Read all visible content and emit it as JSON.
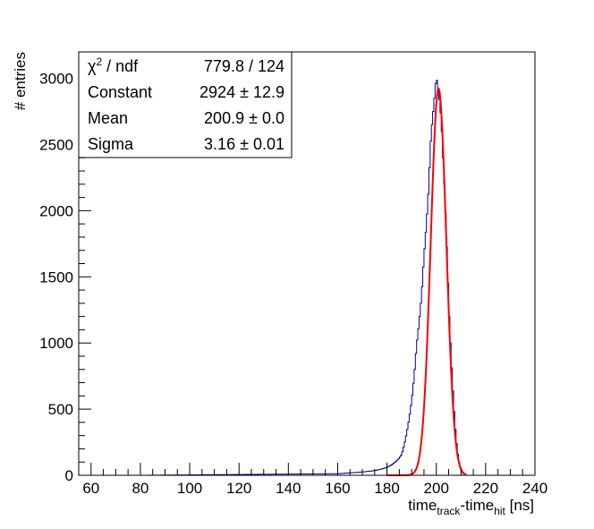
{
  "chart_data": {
    "type": "histogram",
    "xlabel_parts": {
      "t1": "time",
      "sub1": "track",
      "t2": "-time",
      "sub2": "hit",
      "t3": " [ns]"
    },
    "ylabel": "# entries",
    "xlim": [
      55,
      240
    ],
    "ylim": [
      0,
      3200
    ],
    "x_ticks": [
      60,
      80,
      100,
      120,
      140,
      160,
      180,
      200,
      220,
      240
    ],
    "y_ticks": [
      0,
      500,
      1000,
      1500,
      2000,
      2500,
      3000
    ],
    "grid": false,
    "colors": {
      "histogram": "#000099",
      "fit": "#ff0000",
      "frame": "#000000"
    },
    "histogram": {
      "bin_width": 0.5,
      "x": [
        160,
        165,
        170,
        175,
        178,
        180,
        182,
        184,
        185,
        186,
        187,
        188,
        189,
        190,
        191,
        192,
        193,
        194,
        195,
        196,
        197,
        197.5,
        198,
        198.5,
        199,
        199.5,
        200,
        200.5,
        201,
        201.5,
        202,
        202.5,
        203,
        203.5,
        204,
        204.5,
        205,
        206,
        207,
        208,
        209,
        210,
        211,
        212
      ],
      "y": [
        12,
        18,
        25,
        35,
        48,
        60,
        80,
        110,
        130,
        160,
        230,
        320,
        430,
        560,
        740,
        980,
        1150,
        1350,
        1650,
        1900,
        2200,
        2450,
        2600,
        2700,
        2800,
        2900,
        3020,
        2950,
        2900,
        2780,
        2700,
        2500,
        2300,
        2100,
        1850,
        1600,
        1300,
        900,
        550,
        280,
        120,
        40,
        12,
        3
      ]
    },
    "fit": {
      "function": "gaus",
      "constant": 2924,
      "mean": 200.9,
      "sigma": 3.16,
      "range": [
        180,
        212
      ]
    },
    "legend_position": "top-left",
    "stats": [
      {
        "label_prefix": "χ",
        "label_sup": "2",
        "label_suffix": " / ndf",
        "value": "779.8 / 124"
      },
      {
        "label_prefix": "Constant",
        "label_sup": "",
        "label_suffix": "",
        "value": "2924 ± 12.9"
      },
      {
        "label_prefix": "Mean",
        "label_sup": "",
        "label_suffix": "",
        "value": "200.9 ± 0.0"
      },
      {
        "label_prefix": "Sigma",
        "label_sup": "",
        "label_suffix": "",
        "value": "3.16 ± 0.01"
      }
    ]
  }
}
